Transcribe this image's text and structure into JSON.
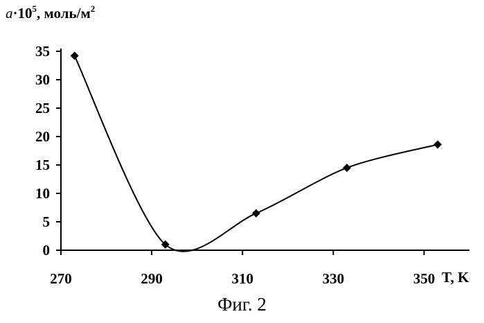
{
  "chart_data": {
    "type": "scatter",
    "title": "",
    "ylabel_prefix": "a",
    "ylabel_mid": "·10",
    "ylabel_exp": "5",
    "ylabel_unit": ", моль/м",
    "ylabel_unit_exp": "2",
    "xlabel": "T, K",
    "xlim": [
      270,
      360
    ],
    "ylim": [
      0,
      35
    ],
    "xticks": [
      "270",
      "290",
      "310",
      "330",
      "350"
    ],
    "yticks": [
      "0",
      "5",
      "10",
      "15",
      "20",
      "25",
      "30",
      "35"
    ],
    "grid": false,
    "marker": "diamond",
    "smooth_line": true,
    "series": [
      {
        "x": [
          273,
          293,
          313,
          333,
          353
        ],
        "y": [
          34.2,
          1.0,
          6.5,
          14.5,
          18.6
        ]
      }
    ]
  },
  "caption": "Фиг. 2"
}
